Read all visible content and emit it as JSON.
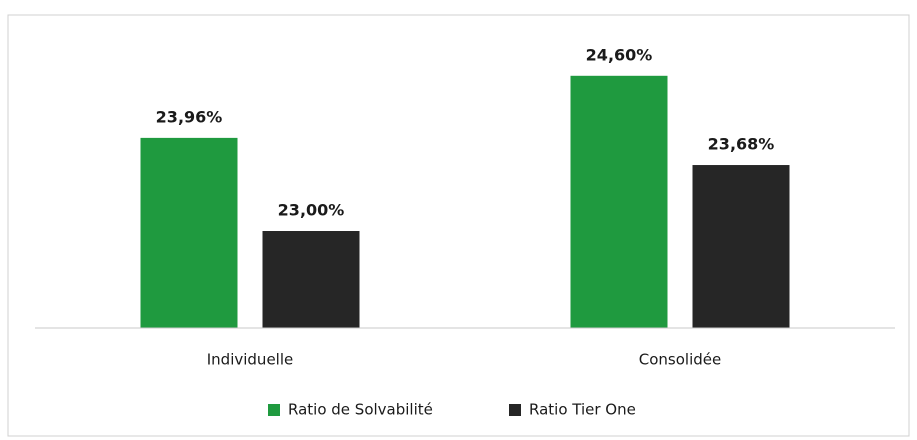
{
  "chart_data": {
    "type": "bar",
    "categories": [
      "Individuelle",
      "Consolidée"
    ],
    "series": [
      {
        "name": "Ratio de Solvabilité",
        "color": "#1f9a3f",
        "values": [
          23.96,
          24.6
        ],
        "value_labels": [
          "23,96%",
          "24,60%"
        ]
      },
      {
        "name": "Ratio Tier One",
        "color": "#262626",
        "values": [
          23.0,
          23.68
        ],
        "value_labels": [
          "23,00%",
          "23,68%"
        ]
      }
    ],
    "ylim": [
      22,
      25
    ],
    "legend": "bottom"
  }
}
